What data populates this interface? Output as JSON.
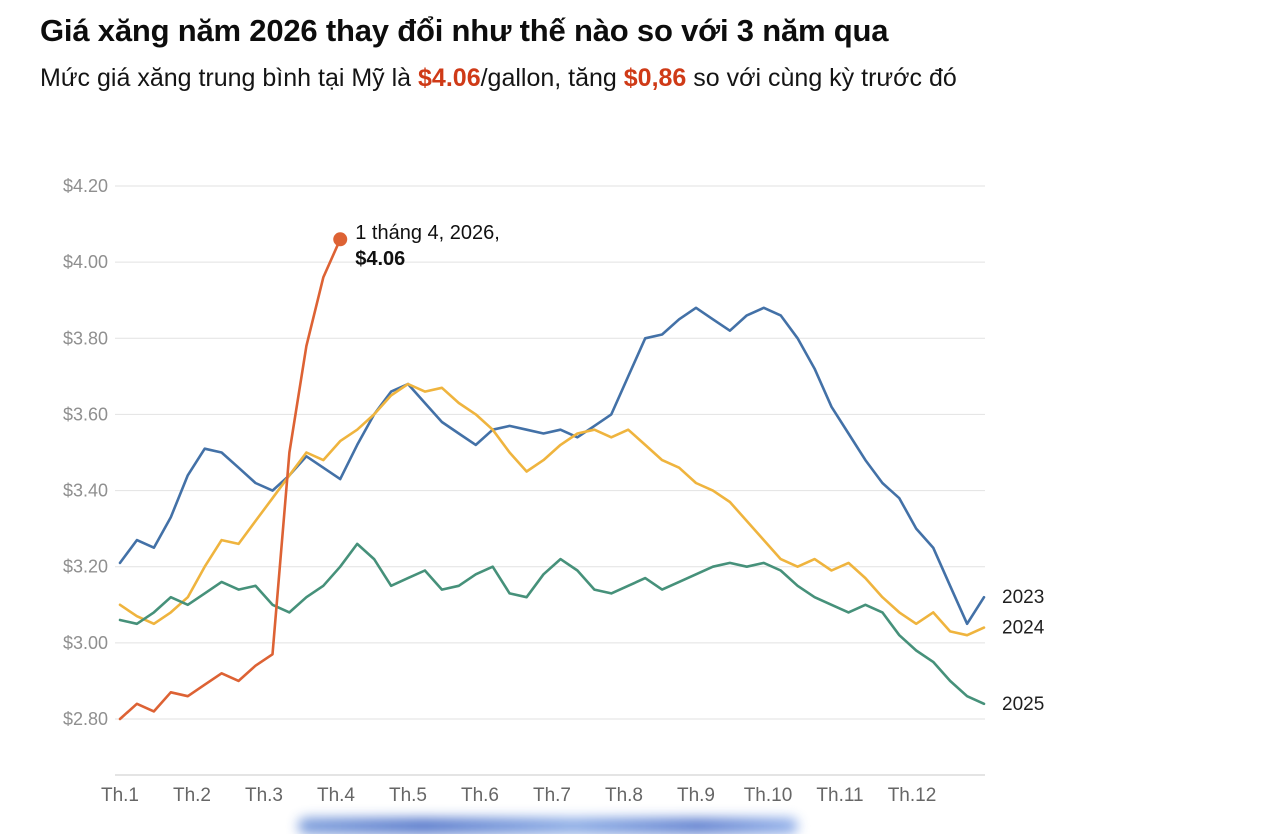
{
  "header": {
    "title": "Giá xăng năm 2026 thay đổi như thế nào so với 3 năm qua",
    "subtitle": {
      "part1": "Mức giá xăng trung bình tại Mỹ là ",
      "highlight1": "$4.06",
      "part2": "/gallon, tăng ",
      "highlight2": "$0,86",
      "part3": " so với cùng kỳ trước đó"
    }
  },
  "annotation": {
    "line1": "1 tháng 4, 2026,",
    "line2": "$4.06"
  },
  "colors": {
    "accent_red": "#cf3a17",
    "series_2023": "#4371a7",
    "series_2024": "#efb43e",
    "series_2025": "#46917a",
    "series_2026": "#dd6234",
    "grid": "#e2e2e2",
    "axis": "#c9c9c9",
    "tick_label": "#8f8f8f",
    "x_label": "#666666",
    "end_label": "#1f1f1f",
    "blur_bar": "#4a6fc9"
  },
  "chart_data": {
    "type": "line",
    "title": "Giá xăng năm 2026 thay đổi như thế nào so với 3 năm qua",
    "unit": "USD per gallon",
    "x_unit": "week-of-year (Jan–Dec)",
    "x_tick_labels": [
      "Th.1",
      "Th.2",
      "Th.3",
      "Th.4",
      "Th.5",
      "Th.6",
      "Th.7",
      "Th.8",
      "Th.9",
      "Th.10",
      "Th.11",
      "Th.12"
    ],
    "y_tick_values": [
      2.8,
      3.0,
      3.2,
      3.4,
      3.6,
      3.8,
      4.0,
      4.2
    ],
    "y_tick_labels": [
      "$2.80",
      "$3.00",
      "$3.20",
      "$3.40",
      "$3.60",
      "$3.80",
      "$4.00",
      "$4.20"
    ],
    "ylim": [
      2.8,
      4.2
    ],
    "grid": true,
    "legend_position": "labels at right end of lines",
    "series": [
      {
        "name": "2023",
        "color": "#4371a7",
        "end_label": true,
        "values": [
          3.21,
          3.27,
          3.25,
          3.33,
          3.44,
          3.51,
          3.5,
          3.46,
          3.42,
          3.4,
          3.44,
          3.49,
          3.46,
          3.43,
          3.52,
          3.6,
          3.66,
          3.68,
          3.63,
          3.58,
          3.55,
          3.52,
          3.56,
          3.57,
          3.56,
          3.55,
          3.56,
          3.54,
          3.57,
          3.6,
          3.7,
          3.8,
          3.81,
          3.85,
          3.88,
          3.85,
          3.82,
          3.86,
          3.88,
          3.86,
          3.8,
          3.72,
          3.62,
          3.55,
          3.48,
          3.42,
          3.38,
          3.3,
          3.25,
          3.15,
          3.05,
          3.12
        ]
      },
      {
        "name": "2024",
        "color": "#efb43e",
        "end_label": true,
        "values": [
          3.1,
          3.07,
          3.05,
          3.08,
          3.12,
          3.2,
          3.27,
          3.26,
          3.32,
          3.38,
          3.44,
          3.5,
          3.48,
          3.53,
          3.56,
          3.6,
          3.65,
          3.68,
          3.66,
          3.67,
          3.63,
          3.6,
          3.56,
          3.5,
          3.45,
          3.48,
          3.52,
          3.55,
          3.56,
          3.54,
          3.56,
          3.52,
          3.48,
          3.46,
          3.42,
          3.4,
          3.37,
          3.32,
          3.27,
          3.22,
          3.2,
          3.22,
          3.19,
          3.21,
          3.17,
          3.12,
          3.08,
          3.05,
          3.08,
          3.03,
          3.02,
          3.04
        ]
      },
      {
        "name": "2025",
        "color": "#46917a",
        "end_label": true,
        "values": [
          3.06,
          3.05,
          3.08,
          3.12,
          3.1,
          3.13,
          3.16,
          3.14,
          3.15,
          3.1,
          3.08,
          3.12,
          3.15,
          3.2,
          3.26,
          3.22,
          3.15,
          3.17,
          3.19,
          3.14,
          3.15,
          3.18,
          3.2,
          3.13,
          3.12,
          3.18,
          3.22,
          3.19,
          3.14,
          3.13,
          3.15,
          3.17,
          3.14,
          3.16,
          3.18,
          3.2,
          3.21,
          3.2,
          3.21,
          3.19,
          3.15,
          3.12,
          3.1,
          3.08,
          3.1,
          3.08,
          3.02,
          2.98,
          2.95,
          2.9,
          2.86,
          2.84
        ]
      },
      {
        "name": "2026",
        "color": "#dd6234",
        "end_label": false,
        "endpoint_dot": true,
        "values": [
          2.8,
          2.84,
          2.82,
          2.87,
          2.86,
          2.89,
          2.92,
          2.9,
          2.94,
          2.97,
          3.5,
          3.78,
          3.96,
          4.06
        ]
      }
    ],
    "annotation": {
      "target": "2026 series endpoint",
      "line1": "1 tháng 4, 2026,",
      "line2": "$4.06",
      "value": 4.06
    }
  }
}
